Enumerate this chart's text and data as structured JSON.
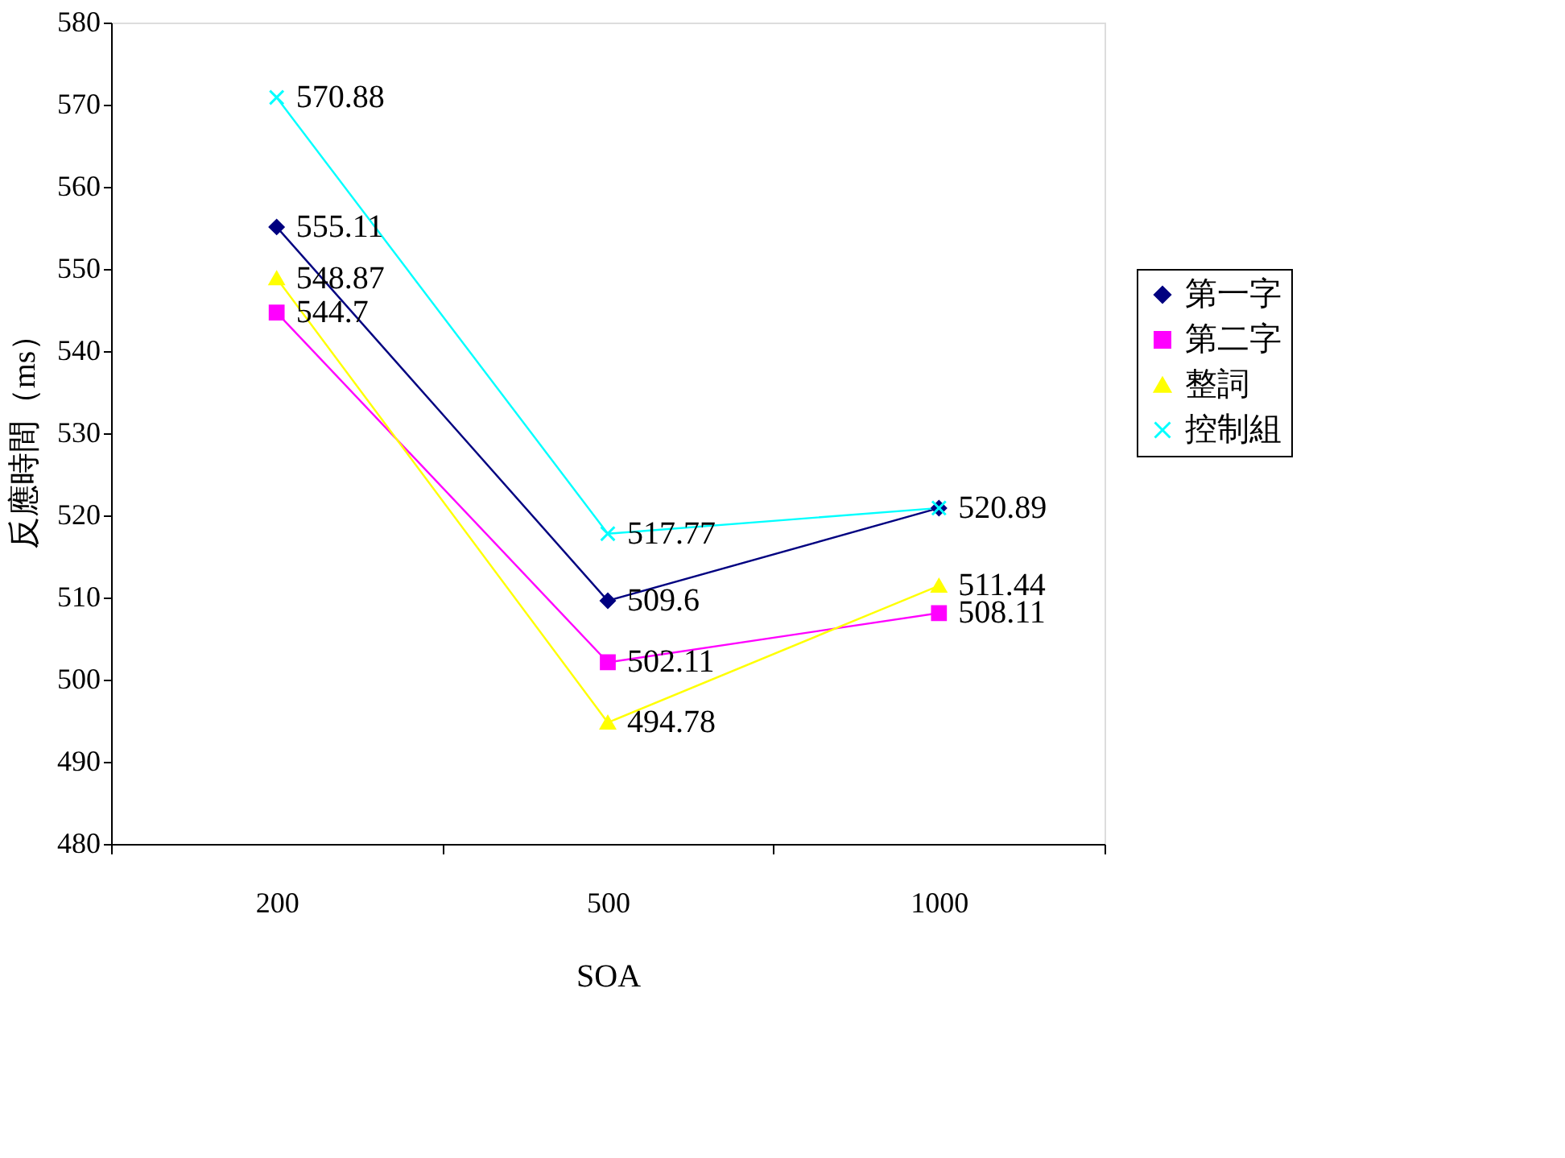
{
  "chart_data": {
    "type": "line",
    "xlabel": "SOA",
    "ylabel": "反應時間（ms）",
    "categories": [
      "200",
      "500",
      "1000"
    ],
    "series": [
      {
        "name": "第一字",
        "color": "#000080",
        "marker": "diamond",
        "values": [
          555.11,
          509.6,
          520.89
        ],
        "value_labels": [
          "555.11",
          "509.6",
          null
        ]
      },
      {
        "name": "第二字",
        "color": "#ff00ff",
        "marker": "square",
        "values": [
          544.7,
          502.11,
          508.11
        ],
        "value_labels": [
          "544.7",
          "502.11",
          "508.11"
        ]
      },
      {
        "name": "整詞",
        "color": "#ffff00",
        "marker": "triangle",
        "values": [
          548.87,
          494.78,
          511.44
        ],
        "value_labels": [
          "548.87",
          "494.78",
          "511.44"
        ]
      },
      {
        "name": "控制組",
        "color": "#00ffff",
        "marker": "cross",
        "values": [
          570.88,
          517.77,
          520.89
        ],
        "value_labels": [
          "570.88",
          "517.77",
          "520.89"
        ]
      }
    ],
    "ylim": [
      480,
      580
    ],
    "yticks": [
      480,
      490,
      500,
      510,
      520,
      530,
      540,
      550,
      560,
      570,
      580
    ],
    "grid": false,
    "legend": "right"
  }
}
